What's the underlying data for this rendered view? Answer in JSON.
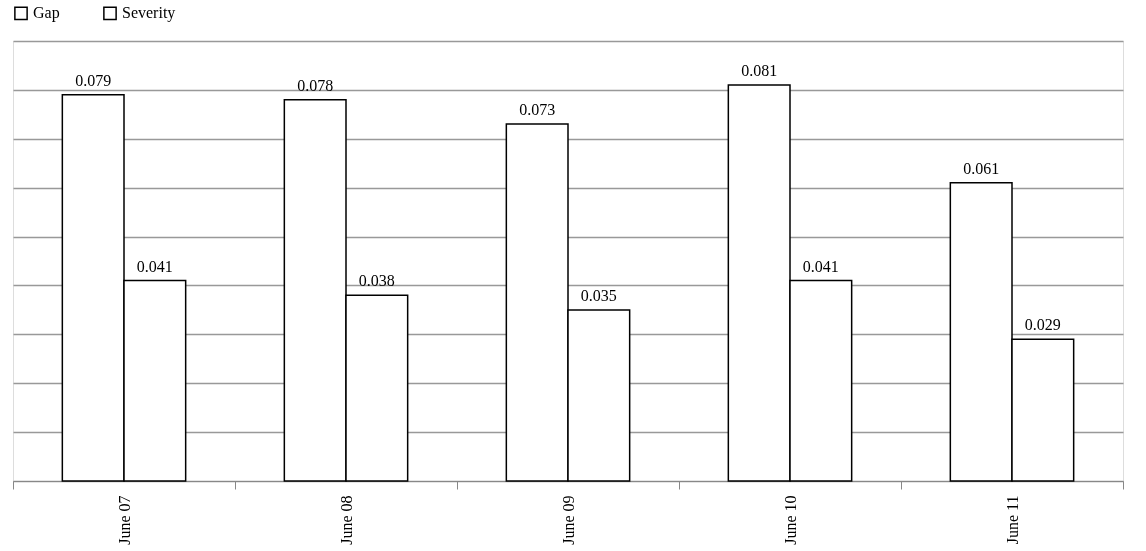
{
  "chart_data": {
    "type": "bar",
    "categories": [
      "June 07",
      "June 08",
      "June 09",
      "June 10",
      "June 11"
    ],
    "series": [
      {
        "name": "Gap",
        "color": "#ffffff",
        "values": [
          0.079,
          0.078,
          0.073,
          0.081,
          0.061
        ]
      },
      {
        "name": "Severity",
        "color": "#ffffff",
        "values": [
          0.041,
          0.038,
          0.035,
          0.041,
          0.029
        ]
      }
    ],
    "ylim": [
      0,
      0.09
    ],
    "yticks": [
      {
        "value": 0,
        "label": null
      },
      {
        "value": 0.01,
        "label": null
      },
      {
        "value": 0.02,
        "label": null
      },
      {
        "value": 0.03,
        "label": null
      },
      {
        "value": 0.04,
        "label": null
      },
      {
        "value": 0.05,
        "label": null
      },
      {
        "value": 0.06,
        "label": null
      },
      {
        "value": 0.07,
        "label": null
      },
      {
        "value": 0.08,
        "label": null
      },
      {
        "value": 0.09,
        "label": null
      }
    ],
    "tick_labels": "x",
    "grid": "y",
    "legend": "top",
    "data_labels": true
  }
}
